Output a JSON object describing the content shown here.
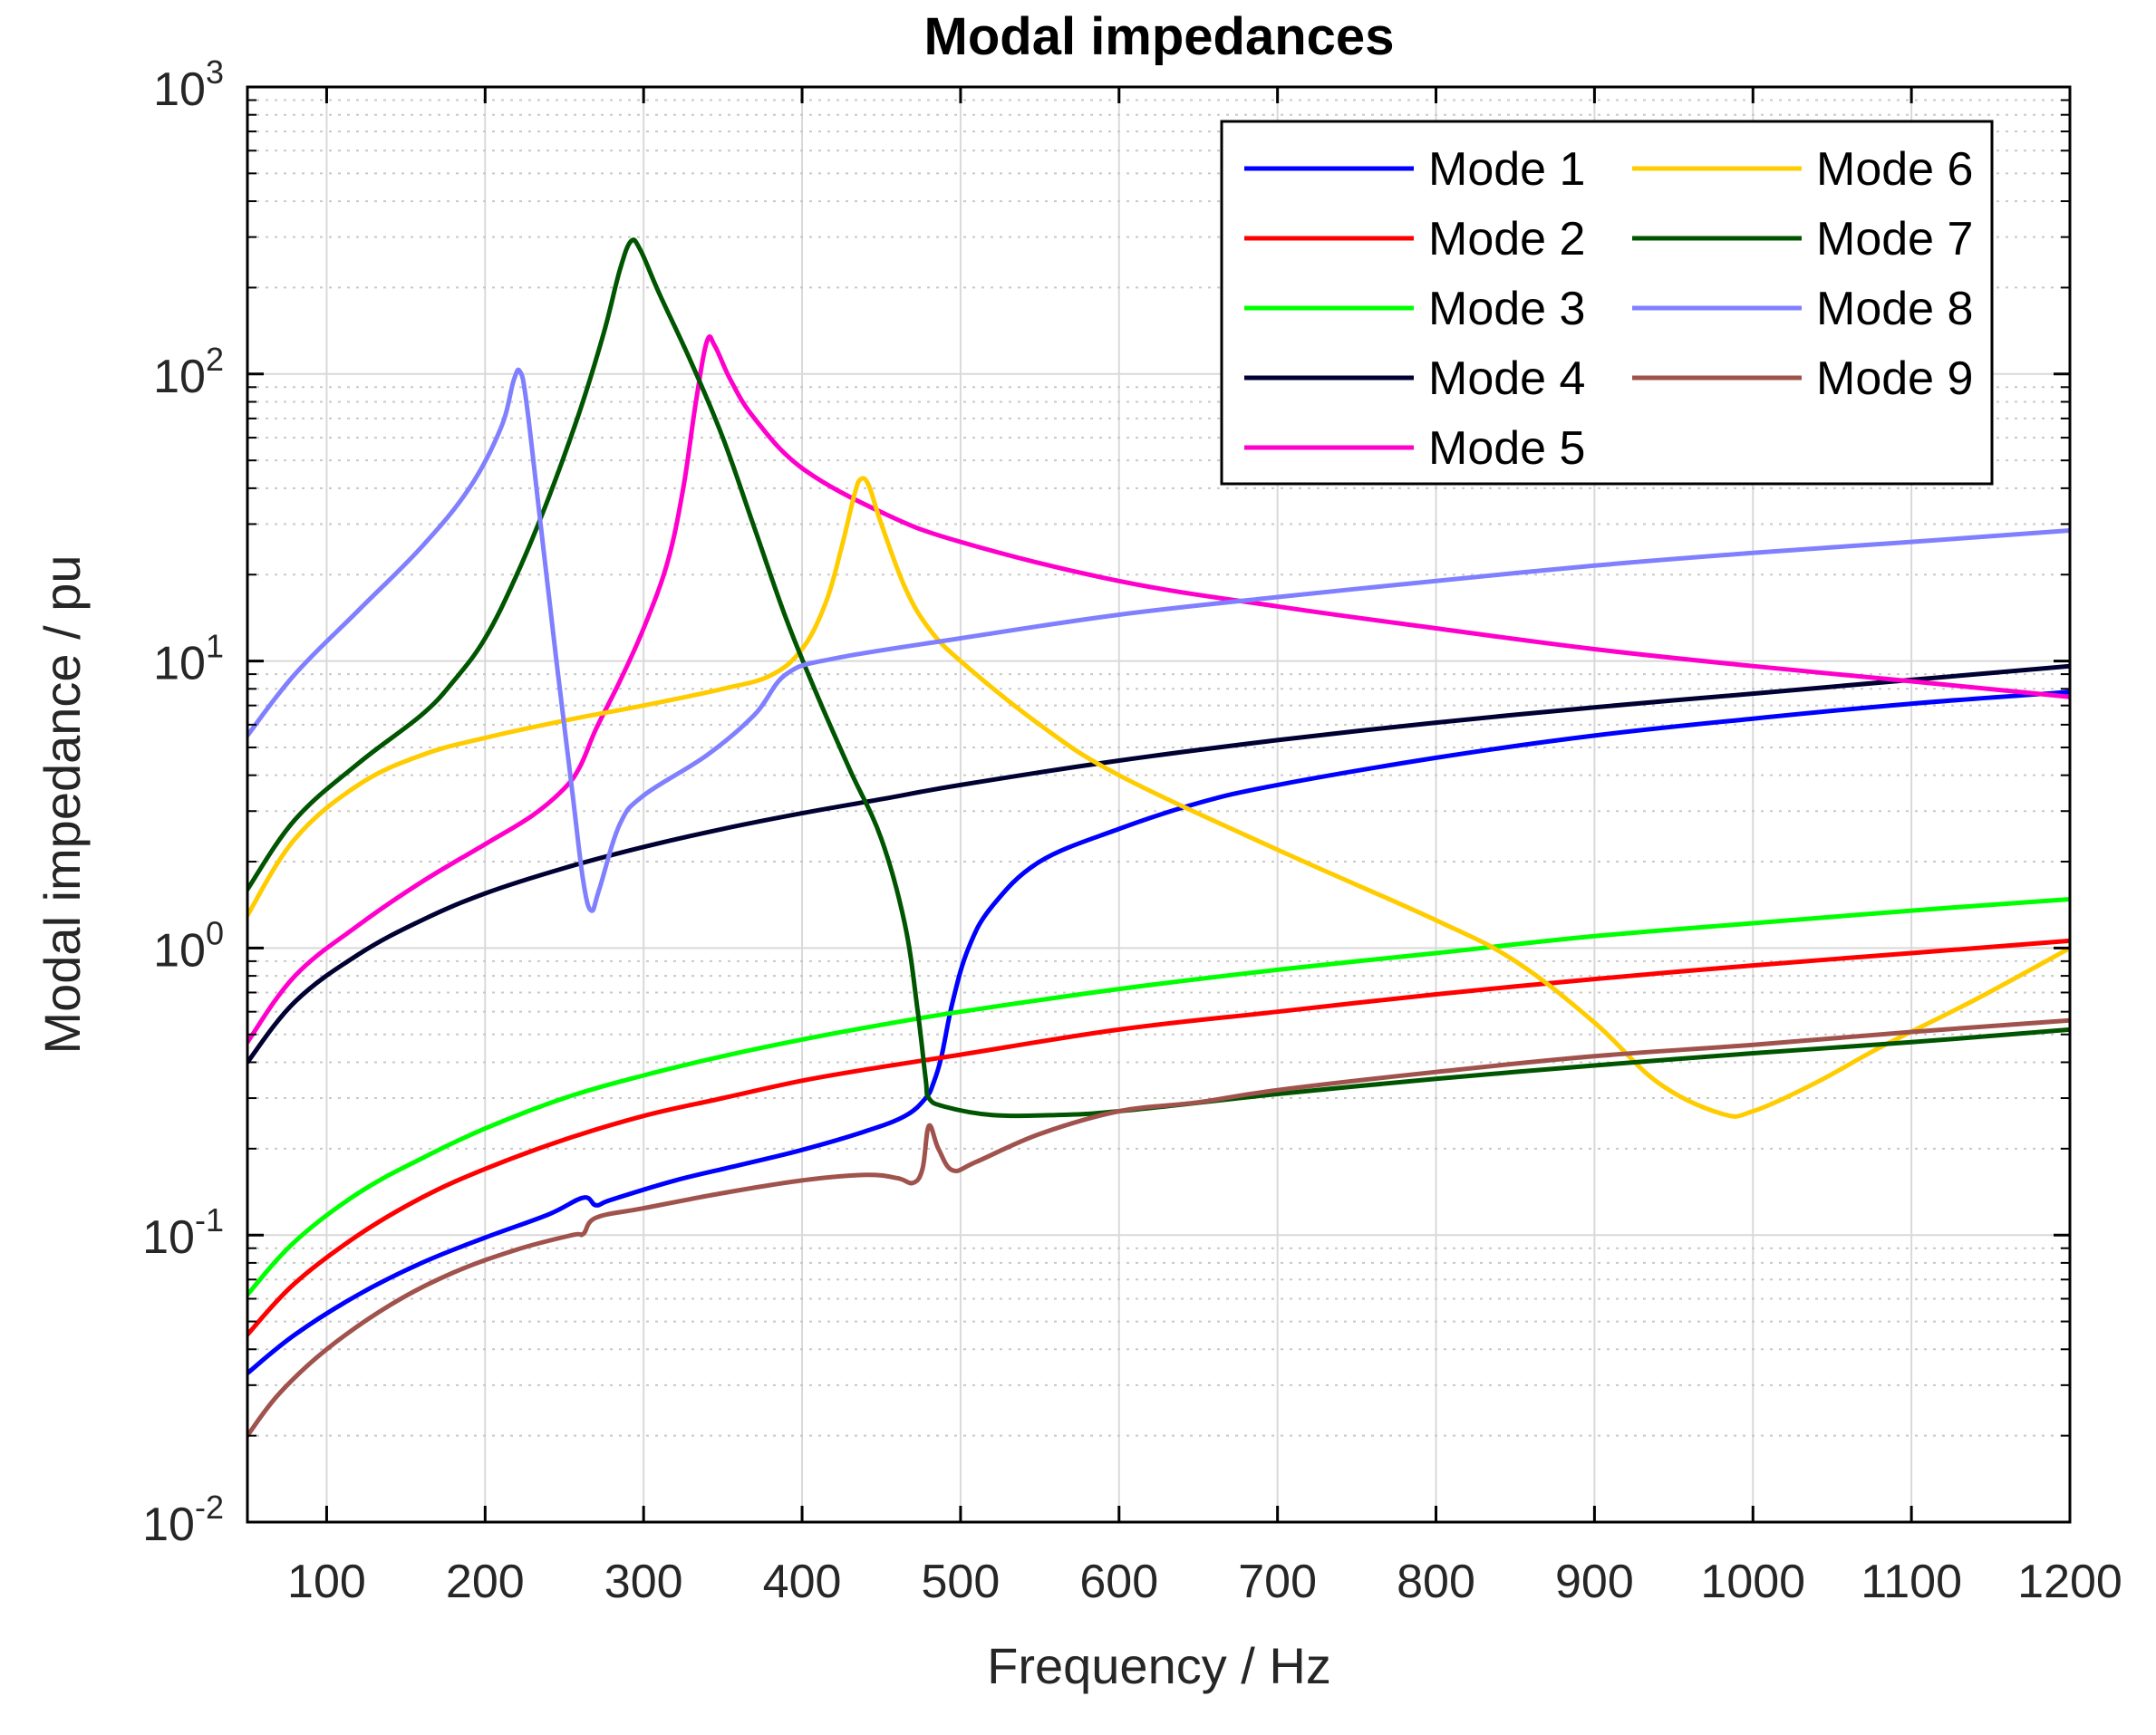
{
  "chart_data": {
    "type": "line",
    "title": "Modal impedances",
    "xlabel": "Frequency / Hz",
    "ylabel": "Modal impedance / pu",
    "xscale": "linear",
    "yscale": "log",
    "xlim": [
      50,
      1200
    ],
    "ylim": [
      0.01,
      1000
    ],
    "xticks": [
      100,
      200,
      300,
      400,
      500,
      600,
      700,
      800,
      900,
      1000,
      1100,
      1200
    ],
    "xtick_labels": [
      "100",
      "200",
      "300",
      "400",
      "500",
      "600",
      "700",
      "800",
      "900",
      "1000",
      "1100",
      "1200"
    ],
    "yticks": [
      {
        "value": 0.01,
        "base": "10",
        "exp": "-2"
      },
      {
        "value": 0.1,
        "base": "10",
        "exp": "-1"
      },
      {
        "value": 1,
        "base": "10",
        "exp": "0"
      },
      {
        "value": 10,
        "base": "10",
        "exp": "1"
      },
      {
        "value": 100,
        "base": "10",
        "exp": "2"
      },
      {
        "value": 1000,
        "base": "10",
        "exp": "3"
      }
    ],
    "grid": true,
    "minor_grid": true,
    "legend_position": "top-right",
    "series": [
      {
        "name": "Mode 1",
        "color": "#0000ff",
        "points": [
          [
            50,
            0.033
          ],
          [
            80,
            0.045
          ],
          [
            120,
            0.062
          ],
          [
            160,
            0.08
          ],
          [
            200,
            0.098
          ],
          [
            240,
            0.118
          ],
          [
            262,
            0.135
          ],
          [
            270,
            0.127
          ],
          [
            280,
            0.133
          ],
          [
            320,
            0.155
          ],
          [
            360,
            0.175
          ],
          [
            400,
            0.198
          ],
          [
            440,
            0.23
          ],
          [
            465,
            0.26
          ],
          [
            478,
            0.3
          ],
          [
            483,
            0.34
          ],
          [
            488,
            0.42
          ],
          [
            495,
            0.65
          ],
          [
            505,
            1.0
          ],
          [
            520,
            1.4
          ],
          [
            550,
            2.0
          ],
          [
            600,
            2.6
          ],
          [
            650,
            3.2
          ],
          [
            700,
            3.7
          ],
          [
            800,
            4.6
          ],
          [
            900,
            5.5
          ],
          [
            1000,
            6.3
          ],
          [
            1100,
            7.1
          ],
          [
            1200,
            7.8
          ]
        ]
      },
      {
        "name": "Mode 2",
        "color": "#ff0000",
        "points": [
          [
            50,
            0.045
          ],
          [
            80,
            0.068
          ],
          [
            120,
            0.1
          ],
          [
            160,
            0.135
          ],
          [
            200,
            0.17
          ],
          [
            250,
            0.215
          ],
          [
            300,
            0.26
          ],
          [
            350,
            0.3
          ],
          [
            400,
            0.345
          ],
          [
            450,
            0.385
          ],
          [
            500,
            0.425
          ],
          [
            600,
            0.52
          ],
          [
            700,
            0.6
          ],
          [
            800,
            0.69
          ],
          [
            900,
            0.78
          ],
          [
            1000,
            0.87
          ],
          [
            1100,
            0.96
          ],
          [
            1200,
            1.06
          ]
        ]
      },
      {
        "name": "Mode 3",
        "color": "#00ff00",
        "points": [
          [
            50,
            0.062
          ],
          [
            80,
            0.095
          ],
          [
            120,
            0.14
          ],
          [
            160,
            0.185
          ],
          [
            200,
            0.235
          ],
          [
            250,
            0.3
          ],
          [
            300,
            0.36
          ],
          [
            350,
            0.42
          ],
          [
            400,
            0.48
          ],
          [
            450,
            0.54
          ],
          [
            500,
            0.6
          ],
          [
            600,
            0.72
          ],
          [
            700,
            0.84
          ],
          [
            800,
            0.96
          ],
          [
            900,
            1.1
          ],
          [
            1000,
            1.22
          ],
          [
            1100,
            1.35
          ],
          [
            1200,
            1.48
          ]
        ]
      },
      {
        "name": "Mode 4",
        "color": "#000033",
        "points": [
          [
            50,
            0.4
          ],
          [
            80,
            0.65
          ],
          [
            120,
            0.95
          ],
          [
            160,
            1.25
          ],
          [
            200,
            1.55
          ],
          [
            250,
            1.9
          ],
          [
            300,
            2.25
          ],
          [
            350,
            2.6
          ],
          [
            400,
            2.95
          ],
          [
            450,
            3.3
          ],
          [
            500,
            3.7
          ],
          [
            600,
            4.5
          ],
          [
            700,
            5.3
          ],
          [
            800,
            6.1
          ],
          [
            900,
            6.9
          ],
          [
            1000,
            7.7
          ],
          [
            1100,
            8.6
          ],
          [
            1200,
            9.6
          ]
        ]
      },
      {
        "name": "Mode 5",
        "color": "#ff00cc",
        "points": [
          [
            50,
            0.47
          ],
          [
            80,
            0.8
          ],
          [
            120,
            1.2
          ],
          [
            160,
            1.7
          ],
          [
            200,
            2.3
          ],
          [
            230,
            2.9
          ],
          [
            250,
            3.6
          ],
          [
            260,
            4.3
          ],
          [
            270,
            5.8
          ],
          [
            285,
            8.5
          ],
          [
            300,
            13
          ],
          [
            315,
            22
          ],
          [
            325,
            40
          ],
          [
            333,
            80
          ],
          [
            340,
            130
          ],
          [
            345,
            125
          ],
          [
            355,
            95
          ],
          [
            370,
            70
          ],
          [
            400,
            47
          ],
          [
            450,
            33
          ],
          [
            500,
            26
          ],
          [
            600,
            19
          ],
          [
            700,
            15.5
          ],
          [
            800,
            13
          ],
          [
            900,
            11
          ],
          [
            1000,
            9.6
          ],
          [
            1100,
            8.5
          ],
          [
            1200,
            7.5
          ]
        ]
      },
      {
        "name": "Mode 6",
        "color": "#ffcc00",
        "points": [
          [
            50,
            1.3
          ],
          [
            80,
            2.4
          ],
          [
            120,
            3.7
          ],
          [
            160,
            4.7
          ],
          [
            200,
            5.4
          ],
          [
            250,
            6.2
          ],
          [
            300,
            7.0
          ],
          [
            350,
            8.0
          ],
          [
            380,
            8.9
          ],
          [
            400,
            11
          ],
          [
            415,
            16
          ],
          [
            425,
            25
          ],
          [
            433,
            38
          ],
          [
            437,
            43
          ],
          [
            442,
            41
          ],
          [
            450,
            30
          ],
          [
            465,
            18
          ],
          [
            480,
            13
          ],
          [
            500,
            10
          ],
          [
            550,
            6.0
          ],
          [
            600,
            4.0
          ],
          [
            700,
            2.2
          ],
          [
            800,
            1.25
          ],
          [
            850,
            0.9
          ],
          [
            900,
            0.55
          ],
          [
            940,
            0.34
          ],
          [
            980,
            0.265
          ],
          [
            1000,
            0.27
          ],
          [
            1040,
            0.34
          ],
          [
            1080,
            0.45
          ],
          [
            1140,
            0.66
          ],
          [
            1200,
            1.0
          ]
        ]
      },
      {
        "name": "Mode 7",
        "color": "#005500",
        "points": [
          [
            50,
            1.6
          ],
          [
            80,
            2.8
          ],
          [
            120,
            4.4
          ],
          [
            160,
            6.5
          ],
          [
            180,
            8.5
          ],
          [
            200,
            12
          ],
          [
            220,
            20
          ],
          [
            240,
            37
          ],
          [
            260,
            75
          ],
          [
            275,
            140
          ],
          [
            285,
            230
          ],
          [
            292,
            290
          ],
          [
            298,
            270
          ],
          [
            310,
            190
          ],
          [
            330,
            110
          ],
          [
            350,
            60
          ],
          [
            370,
            29
          ],
          [
            390,
            14
          ],
          [
            410,
            7.5
          ],
          [
            430,
            4.2
          ],
          [
            450,
            2.4
          ],
          [
            465,
            1.2
          ],
          [
            473,
            0.6
          ],
          [
            478,
            0.35
          ],
          [
            480,
            0.3
          ],
          [
            490,
            0.28
          ],
          [
            520,
            0.262
          ],
          [
            560,
            0.262
          ],
          [
            600,
            0.27
          ],
          [
            700,
            0.31
          ],
          [
            800,
            0.35
          ],
          [
            900,
            0.39
          ],
          [
            1000,
            0.43
          ],
          [
            1100,
            0.47
          ],
          [
            1200,
            0.52
          ]
        ]
      },
      {
        "name": "Mode 8",
        "color": "#8080ff",
        "points": [
          [
            50,
            5.5
          ],
          [
            80,
            9
          ],
          [
            120,
            15
          ],
          [
            160,
            25
          ],
          [
            190,
            40
          ],
          [
            210,
            65
          ],
          [
            218,
            95
          ],
          [
            222,
            102
          ],
          [
            226,
            80
          ],
          [
            235,
            30
          ],
          [
            245,
            10
          ],
          [
            255,
            3.5
          ],
          [
            262,
            1.7
          ],
          [
            267,
            1.35
          ],
          [
            272,
            1.6
          ],
          [
            285,
            2.7
          ],
          [
            300,
            3.4
          ],
          [
            340,
            4.7
          ],
          [
            370,
            6.5
          ],
          [
            390,
            9
          ],
          [
            420,
            10.2
          ],
          [
            500,
            12
          ],
          [
            600,
            14.5
          ],
          [
            700,
            16.7
          ],
          [
            800,
            19
          ],
          [
            900,
            21.5
          ],
          [
            1000,
            23.8
          ],
          [
            1100,
            26
          ],
          [
            1200,
            28.5
          ]
        ]
      },
      {
        "name": "Mode 9",
        "color": "#a0524d",
        "points": [
          [
            50,
            0.02
          ],
          [
            70,
            0.028
          ],
          [
            100,
            0.04
          ],
          [
            140,
            0.057
          ],
          [
            180,
            0.074
          ],
          [
            220,
            0.089
          ],
          [
            255,
            0.1
          ],
          [
            262,
            0.101
          ],
          [
            270,
            0.115
          ],
          [
            300,
            0.124
          ],
          [
            350,
            0.14
          ],
          [
            400,
            0.155
          ],
          [
            440,
            0.162
          ],
          [
            460,
            0.158
          ],
          [
            470,
            0.152
          ],
          [
            476,
            0.17
          ],
          [
            480,
            0.24
          ],
          [
            486,
            0.2
          ],
          [
            495,
            0.168
          ],
          [
            510,
            0.18
          ],
          [
            550,
            0.225
          ],
          [
            600,
            0.27
          ],
          [
            650,
            0.29
          ],
          [
            700,
            0.32
          ],
          [
            800,
            0.37
          ],
          [
            900,
            0.42
          ],
          [
            1000,
            0.46
          ],
          [
            1100,
            0.51
          ],
          [
            1200,
            0.56
          ]
        ]
      }
    ],
    "legend_entries": [
      {
        "label": "Mode 1",
        "color": "#0000ff"
      },
      {
        "label": "Mode 2",
        "color": "#ff0000"
      },
      {
        "label": "Mode 3",
        "color": "#00ff00"
      },
      {
        "label": "Mode 4",
        "color": "#000033"
      },
      {
        "label": "Mode 5",
        "color": "#ff00cc"
      },
      {
        "label": "Mode 6",
        "color": "#ffcc00"
      },
      {
        "label": "Mode 7",
        "color": "#005500"
      },
      {
        "label": "Mode 8",
        "color": "#8080ff"
      },
      {
        "label": "Mode 9",
        "color": "#a0524d"
      }
    ]
  }
}
